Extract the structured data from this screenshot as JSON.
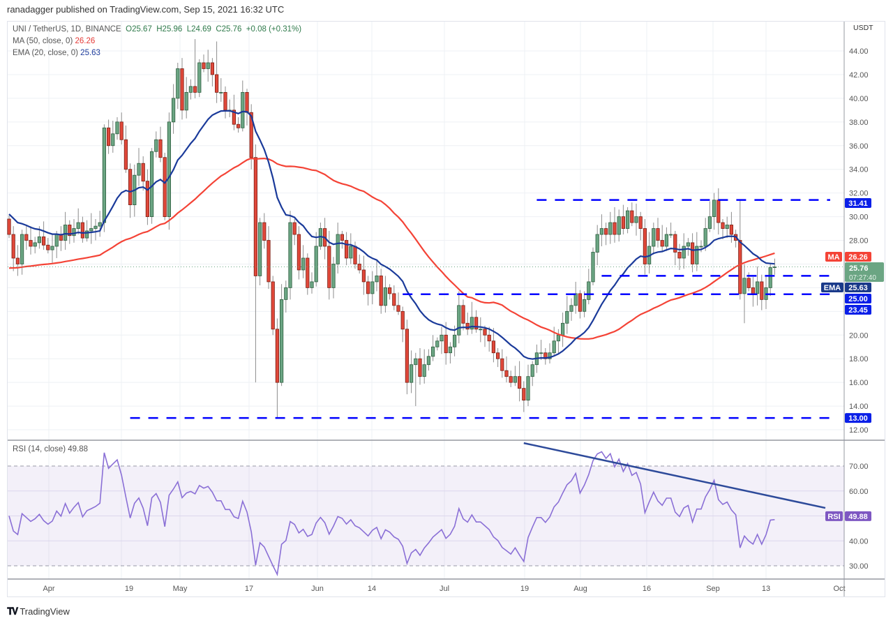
{
  "header": {
    "published": "ranadagger published on TradingView.com, Sep 15, 2021 16:32 UTC"
  },
  "legend": {
    "symbol": "UNI / TetherUS, 1D, BINANCE",
    "open": "O25.67",
    "high": "H25.96",
    "low": "L24.69",
    "close": "C25.76",
    "change": "+0.08 (+0.31%)",
    "ma_label": "MA (50, close, 0)",
    "ma_value": "26.26",
    "ema_label": "EMA (20, close, 0)",
    "ema_value": "25.63",
    "rsi_label": "RSI (14, close)",
    "rsi_value": "49.88"
  },
  "currency": "USDT",
  "price_axis": {
    "min": 12,
    "max": 45,
    "ticks": [
      "44.00",
      "42.00",
      "40.00",
      "38.00",
      "36.00",
      "34.00",
      "32.00",
      "30.00",
      "28.00",
      "20.00",
      "18.00",
      "16.00",
      "14.00",
      "12.00"
    ]
  },
  "rsi_axis": {
    "min": 25,
    "max": 80,
    "ticks": [
      "70.00",
      "60.00",
      "40.00",
      "30.00"
    ]
  },
  "time_axis": [
    "Apr",
    "19",
    "May",
    "17",
    "Jun",
    "14",
    "Jul",
    "19",
    "Aug",
    "16",
    "Sep",
    "13",
    "Oct"
  ],
  "axis_labels": {
    "ma_tag": "MA",
    "ma_price": "26.26",
    "last_price": "25.76",
    "countdown": "07:27:40",
    "ema_tag": "EMA",
    "ema_price": "25.63",
    "level_25": "25.00",
    "level_2345": "23.45",
    "level_3141": "31.41",
    "level_13": "13.00",
    "rsi_tag": "RSI",
    "rsi_price": "49.88"
  },
  "footer": {
    "brand": "TradingView",
    "logo": "TV"
  },
  "colors": {
    "up": "#6ba583",
    "down": "#e0483a",
    "ma": "#f44336",
    "ema": "#1a3a9a",
    "levels": "#0000ff",
    "rsi": "#8a6fd6",
    "trend": "#2d4a9a"
  },
  "chart_data": {
    "type": "candlestick",
    "title": "UNI / TetherUS, 1D, BINANCE",
    "start_date": "2021-03-22",
    "closes": [
      28.5,
      26.5,
      26.0,
      28.5,
      28.0,
      27.5,
      27.8,
      28.3,
      27.6,
      27.2,
      27.5,
      28.5,
      28.0,
      29.3,
      28.4,
      29.0,
      29.5,
      28.2,
      28.8,
      29.0,
      29.2,
      29.5,
      37.5,
      36.0,
      37.0,
      38.0,
      36.5,
      34.0,
      31.0,
      33.5,
      34.5,
      33.0,
      30.0,
      35.5,
      36.5,
      35.0,
      30.0,
      38.0,
      40.0,
      42.5,
      39.0,
      40.5,
      41.0,
      40.5,
      43.0,
      42.5,
      43.0,
      42.0,
      40.5,
      40.5,
      39.0,
      39.0,
      37.8,
      37.5,
      40.5,
      38.8,
      35.0,
      25.0,
      29.5,
      28.0,
      24.5,
      20.5,
      16.0,
      23.0,
      24.0,
      29.5,
      28.5,
      25.5,
      26.5,
      24.0,
      24.5,
      27.5,
      29.0,
      27.5,
      24.0,
      26.0,
      28.5,
      28.0,
      26.5,
      27.5,
      26.0,
      25.5,
      24.5,
      23.5,
      24.5,
      25.0,
      22.5,
      24.0,
      23.5,
      22.5,
      22.0,
      20.5,
      16.0,
      17.5,
      18.0,
      16.5,
      17.5,
      18.2,
      19.0,
      19.5,
      20.0,
      18.5,
      19.0,
      20.0,
      22.5,
      21.0,
      20.5,
      21.5,
      20.5,
      20.5,
      20.0,
      19.5,
      18.5,
      18.0,
      17.0,
      16.5,
      16.0,
      16.5,
      15.5,
      14.5,
      16.5,
      17.5,
      18.5,
      18.5,
      18.0,
      18.5,
      19.5,
      20.0,
      21.0,
      22.0,
      22.5,
      23.5,
      22.0,
      23.0,
      24.5,
      27.0,
      28.5,
      29.0,
      28.5,
      29.5,
      28.5,
      30.0,
      29.0,
      30.5,
      29.5,
      30.0,
      29.0,
      26.0,
      27.5,
      29.0,
      28.0,
      27.5,
      28.5,
      28.5,
      27.0,
      26.5,
      27.5,
      27.8,
      26.0,
      27.5,
      27.5,
      29.0,
      30.0,
      31.4,
      29.5,
      29.0,
      29.3,
      28.5,
      28.0,
      23.5,
      24.8,
      24.0,
      23.5,
      24.5,
      23.0,
      24.0,
      25.7,
      25.76
    ],
    "first_open": 29.8,
    "lows_override": {
      "57": 16.0,
      "62": 13.0,
      "94": 14.0,
      "120": 14.0,
      "170": 21.0
    },
    "highs_override": {
      "43": 45.0,
      "48": 44.8,
      "169": 31.41
    },
    "indicator_seeds": {
      "ema20": 30.4,
      "ma50": 25.6,
      "rsi": 55
    },
    "levels": [
      {
        "price": 31.41,
        "from_index": 122
      },
      {
        "price": 25.0,
        "from_index": 137
      },
      {
        "price": 23.45,
        "from_index": 91
      },
      {
        "price": 13.0,
        "from_index": 28
      }
    ],
    "rsi_trendline": {
      "from_index": 137,
      "from_value": 79.2,
      "to_index": 190,
      "to_value": 53.2
    },
    "rsi_bands": [
      30,
      70
    ]
  }
}
